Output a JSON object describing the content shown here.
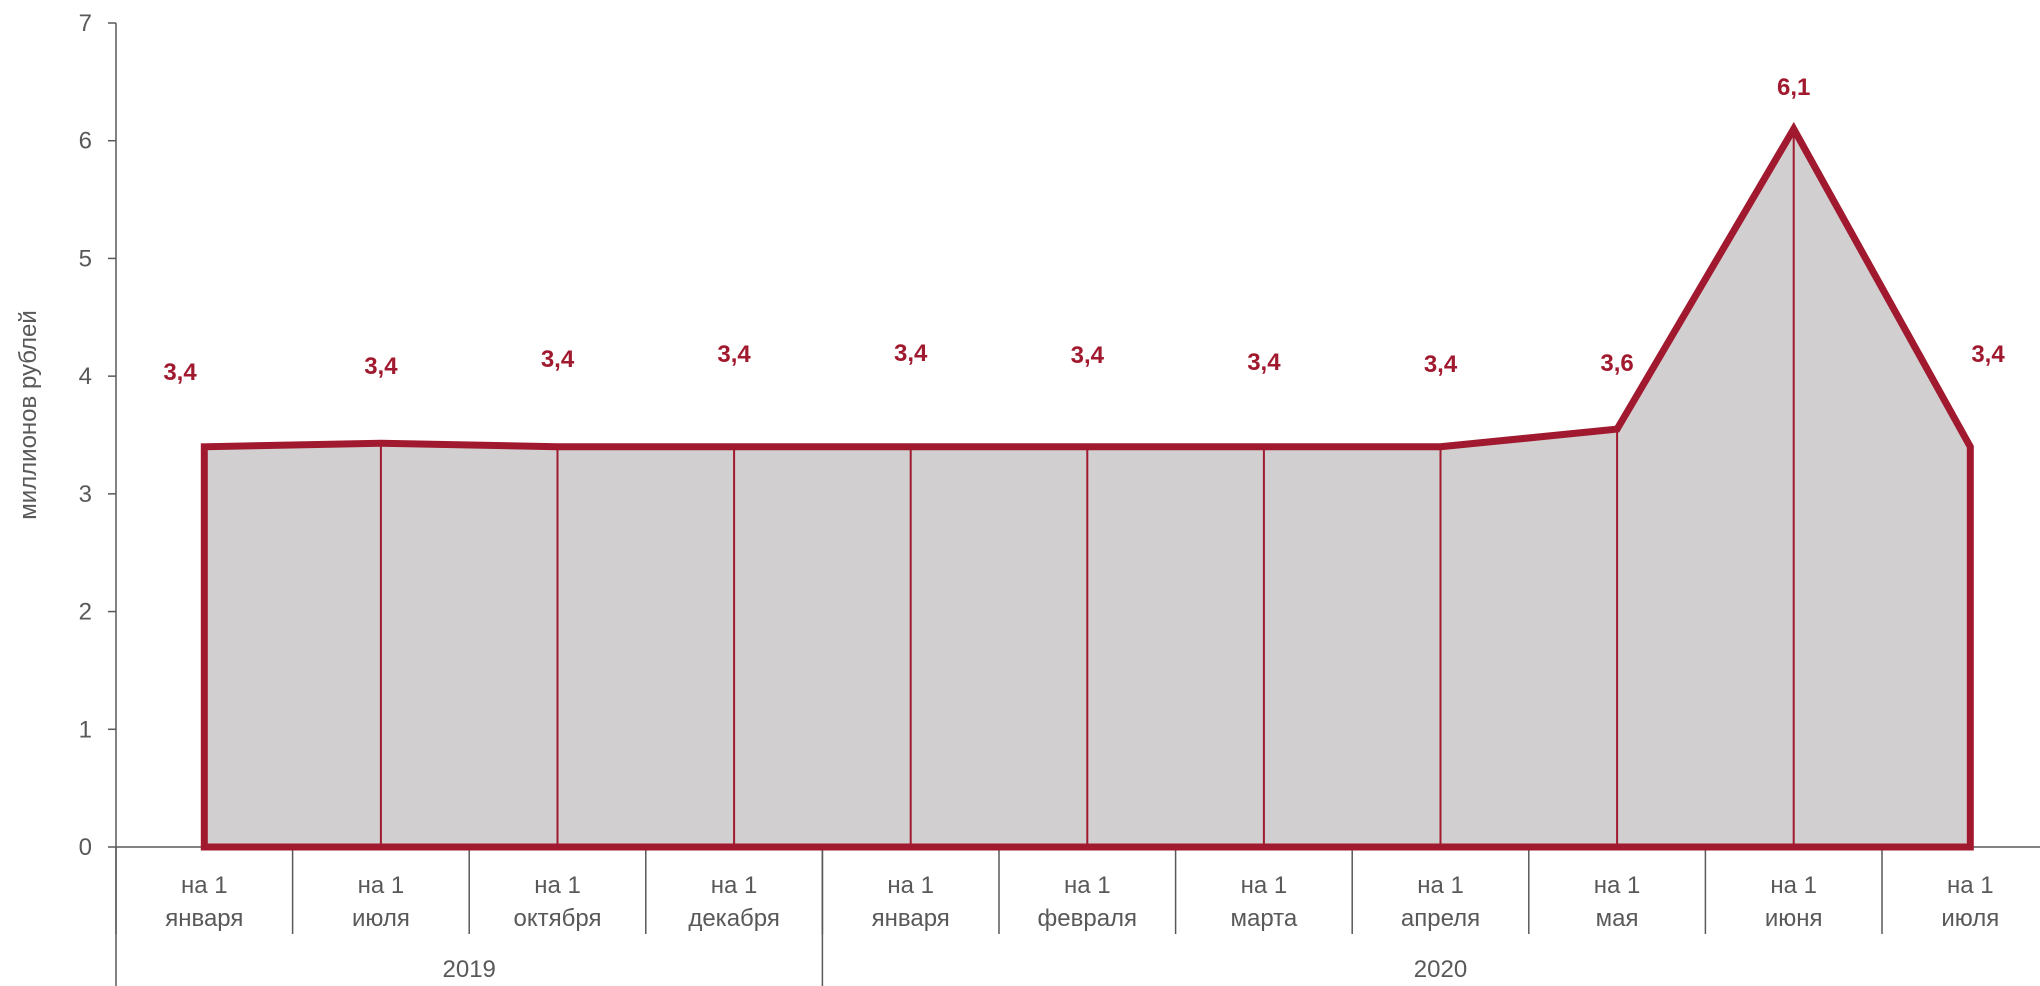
{
  "chart_data": {
    "type": "area",
    "ylabel": "миллионов рублей",
    "ylim": [
      0,
      7
    ],
    "yticks": [
      "0",
      "1",
      "2",
      "3",
      "4",
      "5",
      "6",
      "7"
    ],
    "categories": [
      [
        "на 1",
        "января"
      ],
      [
        "на 1",
        "июля"
      ],
      [
        "на 1",
        "октября"
      ],
      [
        "на 1",
        "декабря"
      ],
      [
        "на 1",
        "января"
      ],
      [
        "на 1",
        "февраля"
      ],
      [
        "на 1",
        "марта"
      ],
      [
        "на 1",
        "апреля"
      ],
      [
        "на 1",
        "мая"
      ],
      [
        "на 1",
        "июня"
      ],
      [
        "на 1",
        "июля"
      ]
    ],
    "groups": [
      {
        "label": "2019",
        "count": 4
      },
      {
        "label": "2020",
        "count": 7
      }
    ],
    "series": [
      {
        "values": [
          3.4,
          3.43,
          3.4,
          3.4,
          3.4,
          3.4,
          3.4,
          3.4,
          3.55,
          6.1,
          3.4
        ],
        "data_labels": [
          "3,4",
          "3,4",
          "3,4",
          "3,4",
          "3,4",
          "3,4",
          "3,4",
          "3,4",
          "3,6",
          "6,1",
          "3,4"
        ]
      }
    ],
    "colors": {
      "line": "#A0192E",
      "fill": "#D2CFD1",
      "axis": "#595959"
    },
    "grid": false,
    "legend": "none"
  }
}
